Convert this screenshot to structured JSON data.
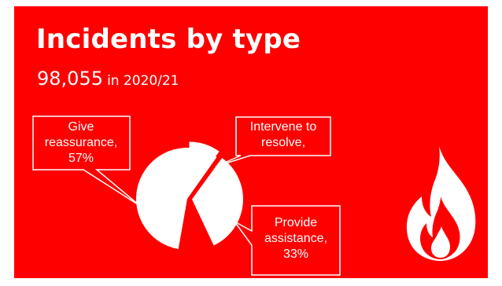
{
  "title": "Incidents by type",
  "summary": {
    "total": "98,055",
    "period": "in 2020/21"
  },
  "colors": {
    "background": "#ff0000",
    "foreground": "#ffffff"
  },
  "icon": "flame-icon",
  "chart_data": {
    "type": "pie",
    "categories": [
      "Give reassurance",
      "Intervene to resolve",
      "Provide assistance"
    ],
    "values": [
      57,
      10,
      33
    ],
    "labels": [
      [
        "Give",
        "reassurance,",
        "57%"
      ],
      [
        "Intervene to",
        "resolve,"
      ],
      [
        "Provide",
        "assistance,",
        "33%"
      ]
    ]
  }
}
